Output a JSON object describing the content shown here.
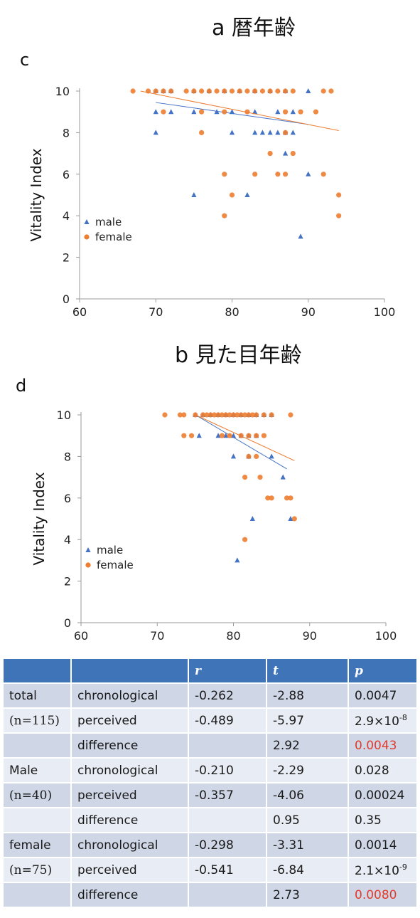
{
  "headings": {
    "a": "a 暦年齢",
    "b": "b 見た目年齢"
  },
  "panel_letters": {
    "c": "c",
    "d": "d"
  },
  "colors": {
    "male": "#4472c4",
    "female": "#ed7d31",
    "header_bg": "#3f74b8",
    "highlight": "#e23a2a"
  },
  "chart_data": [
    {
      "type": "scatter",
      "ylabel": "Vitality Index",
      "xlim": [
        60,
        100
      ],
      "ylim": [
        0,
        10
      ],
      "xticks": [
        60,
        70,
        80,
        90,
        100
      ],
      "yticks": [
        0,
        2,
        4,
        6,
        8,
        10
      ],
      "legend": [
        "male",
        "female"
      ],
      "legend_position": "left",
      "series": [
        {
          "name": "male",
          "marker": "triangle",
          "points": [
            [
              70,
              10
            ],
            [
              71,
              10
            ],
            [
              72,
              10
            ],
            [
              75,
              10
            ],
            [
              77,
              10
            ],
            [
              79,
              10
            ],
            [
              81,
              10
            ],
            [
              83,
              10
            ],
            [
              85,
              10
            ],
            [
              87,
              10
            ],
            [
              90,
              10
            ],
            [
              70,
              9
            ],
            [
              72,
              9
            ],
            [
              75,
              9
            ],
            [
              78,
              9
            ],
            [
              80,
              9
            ],
            [
              83,
              9
            ],
            [
              86,
              9
            ],
            [
              88,
              9
            ],
            [
              70,
              8
            ],
            [
              80,
              8
            ],
            [
              83,
              8
            ],
            [
              84,
              8
            ],
            [
              85,
              8
            ],
            [
              86,
              8
            ],
            [
              87,
              8
            ],
            [
              88,
              8
            ],
            [
              87,
              7
            ],
            [
              90,
              6
            ],
            [
              75,
              5
            ],
            [
              82,
              5
            ],
            [
              89,
              3
            ]
          ],
          "trend": [
            [
              70,
              9.45
            ],
            [
              90,
              8.4
            ]
          ]
        },
        {
          "name": "female",
          "marker": "circle",
          "points": [
            [
              67,
              10
            ],
            [
              69,
              10
            ],
            [
              70,
              10
            ],
            [
              71,
              10
            ],
            [
              72,
              10
            ],
            [
              74,
              10
            ],
            [
              75,
              10
            ],
            [
              76,
              10
            ],
            [
              77,
              10
            ],
            [
              78,
              10
            ],
            [
              79,
              10
            ],
            [
              80,
              10
            ],
            [
              81,
              10
            ],
            [
              82,
              10
            ],
            [
              83,
              10
            ],
            [
              84,
              10
            ],
            [
              85,
              10
            ],
            [
              86,
              10
            ],
            [
              87,
              10
            ],
            [
              88,
              10
            ],
            [
              92,
              10
            ],
            [
              93,
              10
            ],
            [
              71,
              9
            ],
            [
              76,
              9
            ],
            [
              79,
              9
            ],
            [
              82,
              9
            ],
            [
              87,
              9
            ],
            [
              89,
              9
            ],
            [
              91,
              9
            ],
            [
              76,
              8
            ],
            [
              87,
              8
            ],
            [
              85,
              7
            ],
            [
              88,
              7
            ],
            [
              79,
              6
            ],
            [
              83,
              6
            ],
            [
              86,
              6
            ],
            [
              87,
              6
            ],
            [
              92,
              6
            ],
            [
              80,
              5
            ],
            [
              94,
              5
            ],
            [
              79,
              4
            ],
            [
              94,
              4
            ]
          ],
          "trend": [
            [
              68,
              10
            ],
            [
              94,
              8.1
            ]
          ]
        }
      ]
    },
    {
      "type": "scatter",
      "ylabel": "Vitality Index",
      "xlim": [
        60,
        100
      ],
      "ylim": [
        0,
        10
      ],
      "xticks": [
        60,
        70,
        80,
        90,
        100
      ],
      "yticks": [
        0,
        2,
        4,
        6,
        8,
        10
      ],
      "legend": [
        "male",
        "female"
      ],
      "legend_position": "left",
      "series": [
        {
          "name": "male",
          "marker": "triangle",
          "points": [
            [
              75,
              10
            ],
            [
              76,
              10
            ],
            [
              77,
              10
            ],
            [
              78,
              10
            ],
            [
              79,
              10
            ],
            [
              80,
              10
            ],
            [
              81,
              10
            ],
            [
              82,
              10
            ],
            [
              83,
              10
            ],
            [
              84,
              10
            ],
            [
              85,
              10
            ],
            [
              75.5,
              9
            ],
            [
              78,
              9
            ],
            [
              79,
              9
            ],
            [
              80,
              9
            ],
            [
              81,
              9
            ],
            [
              82,
              9
            ],
            [
              83,
              9
            ],
            [
              80,
              8
            ],
            [
              82,
              8
            ],
            [
              85,
              8
            ],
            [
              86.5,
              7
            ],
            [
              87.5,
              5
            ],
            [
              82.5,
              5
            ],
            [
              80.5,
              3
            ]
          ],
          "trend": [
            [
              75,
              10
            ],
            [
              87,
              7.4
            ]
          ]
        },
        {
          "name": "female",
          "marker": "circle",
          "points": [
            [
              71,
              10
            ],
            [
              73,
              10
            ],
            [
              73.5,
              10
            ],
            [
              75,
              10
            ],
            [
              76,
              10
            ],
            [
              76.5,
              10
            ],
            [
              77,
              10
            ],
            [
              77.5,
              10
            ],
            [
              78,
              10
            ],
            [
              78.5,
              10
            ],
            [
              79,
              10
            ],
            [
              79.5,
              10
            ],
            [
              80,
              10
            ],
            [
              80.5,
              10
            ],
            [
              81,
              10
            ],
            [
              81.5,
              10
            ],
            [
              82,
              10
            ],
            [
              82.5,
              10
            ],
            [
              83,
              10
            ],
            [
              84,
              10
            ],
            [
              85,
              10
            ],
            [
              87.5,
              10
            ],
            [
              73.5,
              9
            ],
            [
              74.5,
              9
            ],
            [
              78.5,
              9
            ],
            [
              79.5,
              9
            ],
            [
              81,
              9
            ],
            [
              82,
              9
            ],
            [
              83,
              9
            ],
            [
              84,
              9
            ],
            [
              82,
              8
            ],
            [
              83,
              8
            ],
            [
              81.5,
              7
            ],
            [
              83.5,
              7
            ],
            [
              84.5,
              6
            ],
            [
              85,
              6
            ],
            [
              87,
              6
            ],
            [
              87.5,
              6
            ],
            [
              88,
              5
            ],
            [
              81.5,
              4
            ]
          ],
          "trend": [
            [
              75,
              10
            ],
            [
              88,
              7.8
            ]
          ]
        }
      ]
    }
  ],
  "table": {
    "headers": [
      "",
      "",
      "r",
      "t",
      "p"
    ],
    "rows": [
      {
        "group": "total",
        "type": "chronological",
        "r": "-0.262",
        "t": "-2.88",
        "p": "0.0047"
      },
      {
        "group": "(n=115)",
        "type": "perceived",
        "r": "-0.489",
        "t": "-5.97",
        "p_base": "2.9×10",
        "p_exp": "-8"
      },
      {
        "group": "",
        "type": "difference",
        "r": "",
        "t": "2.92",
        "p": "0.0043",
        "p_highlight": true
      },
      {
        "group": "Male",
        "type": "chronological",
        "r": "-0.210",
        "t": "-2.29",
        "p": "0.028"
      },
      {
        "group": "(n=40)",
        "type": "perceived",
        "r": "-0.357",
        "t": "-4.06",
        "p": "0.00024"
      },
      {
        "group": "",
        "type": "difference",
        "r": "",
        "t": "0.95",
        "p": "0.35"
      },
      {
        "group": "female",
        "type": "chronological",
        "r": "-0.298",
        "t": "-3.31",
        "p": "0.0014"
      },
      {
        "group": "(n=75)",
        "type": "perceived",
        "r": "-0.541",
        "t": "-6.84",
        "p_base": "2.1×10",
        "p_exp": "-9"
      },
      {
        "group": "",
        "type": "difference",
        "r": "",
        "t": "2.73",
        "p": "0.0080",
        "p_highlight": true
      }
    ]
  }
}
